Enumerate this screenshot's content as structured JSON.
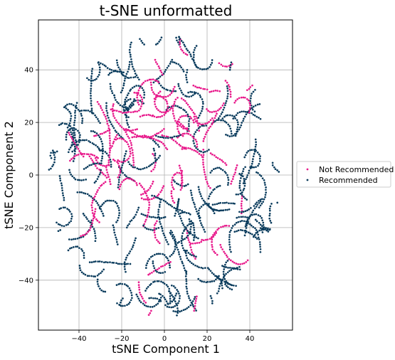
{
  "chart_data": {
    "type": "scatter",
    "title": "t-SNE unformatted",
    "xlabel": "tSNE Component 1",
    "ylabel": "tSNE Component 2",
    "xlim": [
      -59,
      60
    ],
    "ylim": [
      -59,
      59
    ],
    "xticks": [
      -40,
      -20,
      0,
      20,
      40
    ],
    "yticks": [
      -40,
      -20,
      0,
      20,
      40
    ],
    "grid": true,
    "legend_position": "right",
    "series": [
      {
        "name": "Not Recommended",
        "color": "#e8198b"
      },
      {
        "name": "Recommended",
        "color": "#0b3c5d"
      }
    ]
  }
}
